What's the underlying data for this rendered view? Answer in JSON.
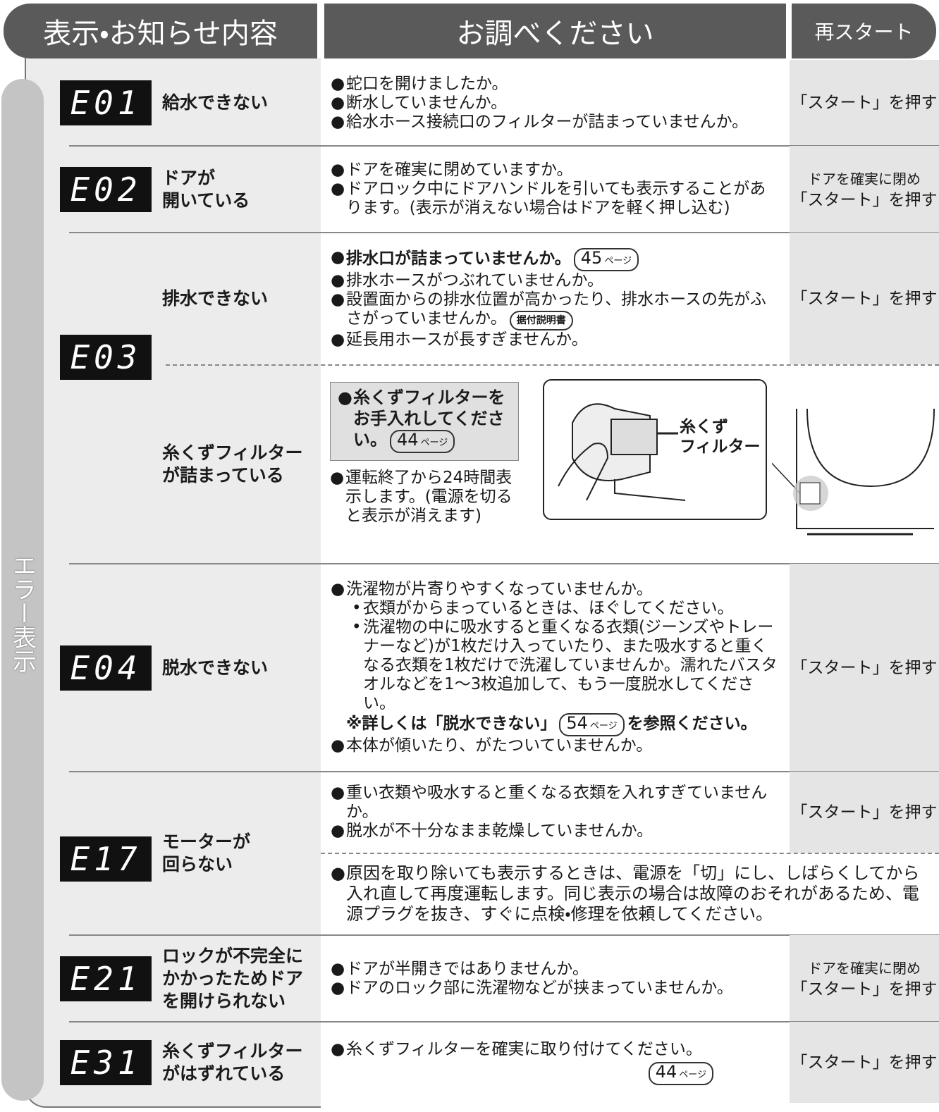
{
  "header": {
    "col1": "表示・お知らせ内容",
    "col2": "お調べください",
    "col3": "再スタート"
  },
  "side_label": "エラー表示",
  "rows": [
    {
      "code": "E01",
      "name": [
        "給水できない"
      ],
      "checks": [
        "蛇口を開けましたか。",
        "断水していませんか。",
        "給水ホース接続口のフィルターが詰まっていませんか。"
      ],
      "restart": [
        "「スタート」を押す"
      ]
    },
    {
      "code": "E02",
      "name": [
        "ドアが",
        "開いている"
      ],
      "checks": [
        "ドアを確実に閉めていますか。",
        "ドアロック中にドアハンドルを引いても表示することがあります。(表示が消えない場合はドアを軽く押し込む)"
      ],
      "restart": [
        "ドアを確実に閉め",
        "「スタート」を押す"
      ]
    },
    {
      "code": "E03",
      "sections": [
        {
          "name": [
            "排水できない"
          ],
          "checks": [
            {
              "text": "排水口が詰まっていませんか。",
              "bold": true,
              "ref": {
                "num": 45,
                "unit": "ページ"
              }
            },
            "排水ホースがつぶれていませんか。",
            {
              "text": "設置面からの排水位置が高かったり、排水ホースの先がふさがっていませんか。",
              "ref": {
                "label": "据付説明書"
              }
            },
            "延長用ホースが長すぎませんか。"
          ],
          "restart": [
            "「スタート」を押す"
          ]
        },
        {
          "name": [
            "糸くずフィルター",
            "が詰まっている"
          ],
          "tip": {
            "text": "糸くずフィルターをお手入れしてください。",
            "ref": {
              "num": 44,
              "unit": "ページ"
            }
          },
          "note": "運転終了から24時間表示します。(電源を切ると表示が消えます)",
          "figure_label": [
            "糸くず",
            "フィルター"
          ]
        }
      ]
    },
    {
      "code": "E04",
      "name": [
        "脱水できない"
      ],
      "checks": [
        {
          "text": "洗濯物が片寄りやすくなっていませんか。",
          "sub": [
            "衣類がからまっているときは、ほぐしてください。",
            "洗濯物の中に吸水すると重くなる衣類(ジーンズやトレーナーなど)が1枚だけ入っていたり、また吸水すると重くなる衣類を1枚だけで洗濯していませんか。濡れたバスタオルなどを1～3枚追加して、もう一度脱水してください。"
          ],
          "note": {
            "before": "※詳しくは「脱水できない」",
            "ref": {
              "num": 54,
              "unit": "ページ"
            },
            "after": "を参照ください。"
          }
        },
        "本体が傾いたり、がたついていませんか。"
      ],
      "restart": [
        "「スタート」を押す"
      ]
    },
    {
      "code": "E17",
      "name": [
        "モーターが",
        "回らない"
      ],
      "checks": [
        "重い衣類や吸水すると重くなる衣類を入れすぎていませんか。",
        "脱水が不十分なまま乾燥していませんか。"
      ],
      "restart": [
        "「スタート」を押す"
      ],
      "extra": "原因を取り除いても表示するときは、電源を「切」にし、しばらくしてから入れ直して再度運転します。同じ表示の場合は故障のおそれがあるため、電源プラグを抜き、すぐに点検・修理を依頼してください。"
    },
    {
      "code": "E21",
      "name": [
        "ロックが不完全に",
        "かかったためドア",
        "を開けられない"
      ],
      "checks": [
        "ドアが半開きではありませんか。",
        "ドアのロック部に洗濯物などが挟まっていませんか。"
      ],
      "restart": [
        "ドアを確実に閉め",
        "「スタート」を押す"
      ]
    },
    {
      "code": "E31",
      "name": [
        "糸くずフィルター",
        "がはずれている"
      ],
      "checks": [
        {
          "text": "糸くずフィルターを確実に取り付けてください。",
          "ref": {
            "num": 44,
            "unit": "ページ"
          },
          "ref_newline": true
        }
      ],
      "restart": [
        "「スタート」を押す"
      ]
    }
  ]
}
